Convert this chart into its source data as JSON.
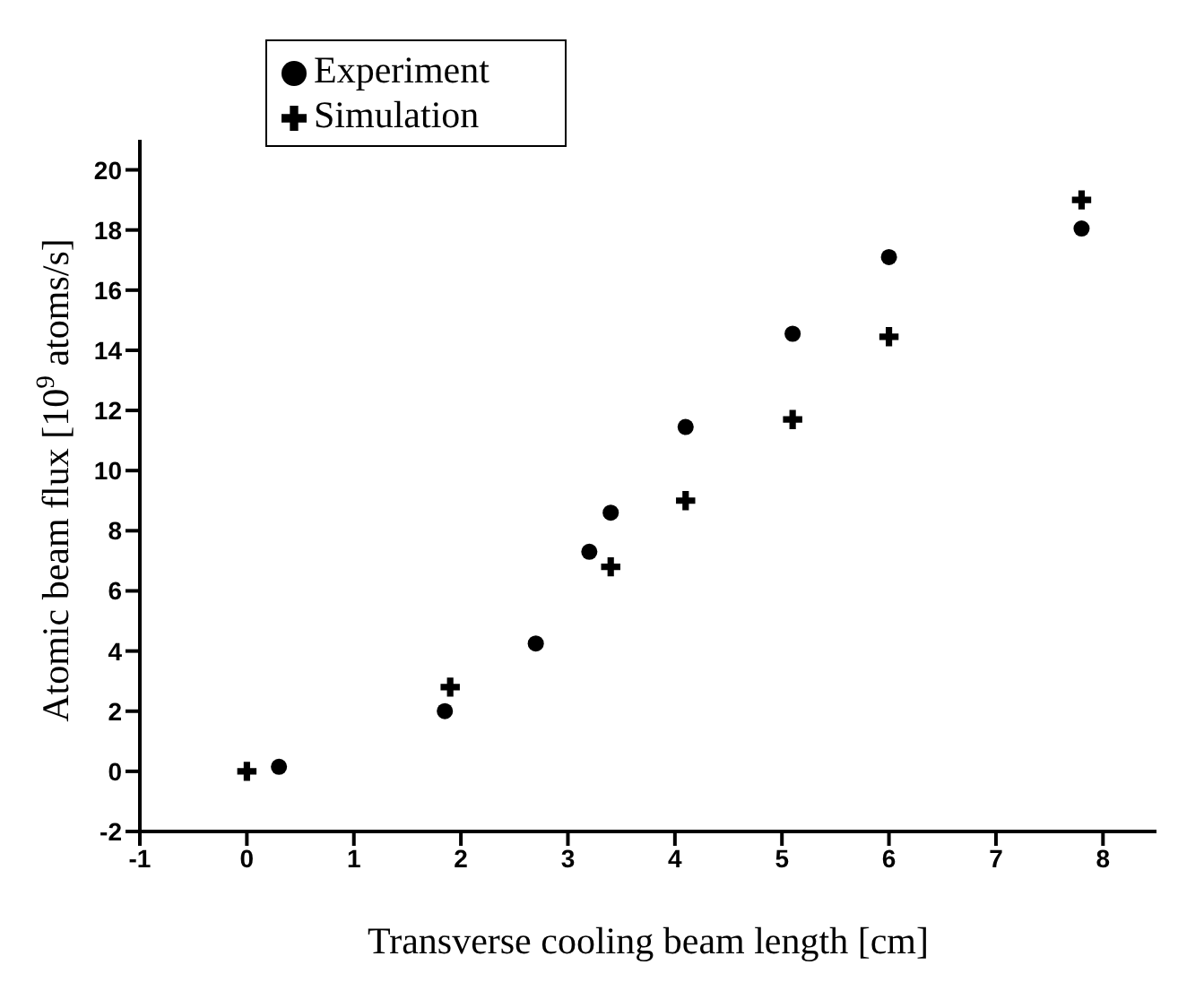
{
  "chart_data": {
    "type": "scatter",
    "xlabel": "Transverse cooling beam length [cm]",
    "ylabel": "Atomic beam flux [10$^{9}$ atoms/s]",
    "xlim": [
      -1,
      8.5
    ],
    "xticks": [
      -1,
      0,
      1,
      2,
      3,
      4,
      5,
      6,
      7,
      8
    ],
    "ylim": [
      -2,
      21
    ],
    "yticks": [
      -2,
      0,
      2,
      4,
      6,
      8,
      10,
      12,
      14,
      16,
      18,
      20
    ],
    "grid": false,
    "legend": "top left",
    "series": [
      {
        "name": "Experiment",
        "color": "#000000",
        "marker": "circle",
        "x": [
          0.3,
          1.85,
          2.7,
          3.2,
          3.4,
          4.1,
          5.1,
          6.0,
          7.8
        ],
        "values": [
          0.15,
          2.0,
          4.25,
          7.3,
          8.6,
          11.45,
          14.55,
          17.1,
          18.05
        ]
      },
      {
        "name": "Simulation",
        "color": "#000000",
        "marker": "cross",
        "x": [
          0,
          1.9,
          3.4,
          4.1,
          5.1,
          6.0,
          7.8
        ],
        "values": [
          0,
          2.8,
          6.8,
          9.0,
          11.7,
          14.45,
          19.0
        ]
      }
    ]
  }
}
